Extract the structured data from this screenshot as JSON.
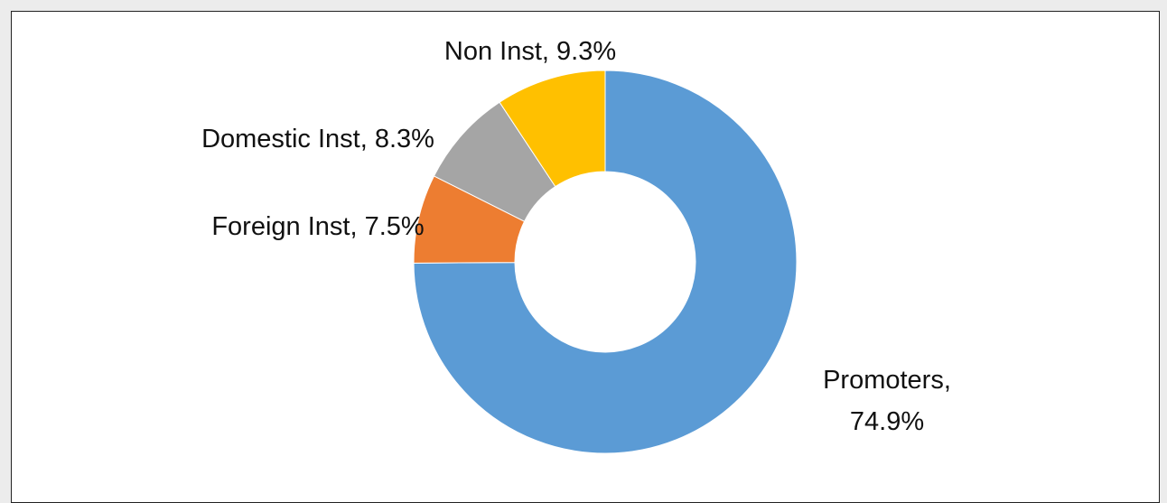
{
  "chart_data": {
    "type": "donut",
    "labels": [
      "Promoters, 74.9%",
      "Foreign Inst, 7.5%",
      "Domestic Inst, 8.3%",
      "Non Inst, 9.3%"
    ],
    "values": [
      74.9,
      7.5,
      8.3,
      9.3
    ],
    "colors": [
      "#5b9bd5",
      "#ed7d31",
      "#a5a5a5",
      "#ffc000"
    ]
  }
}
